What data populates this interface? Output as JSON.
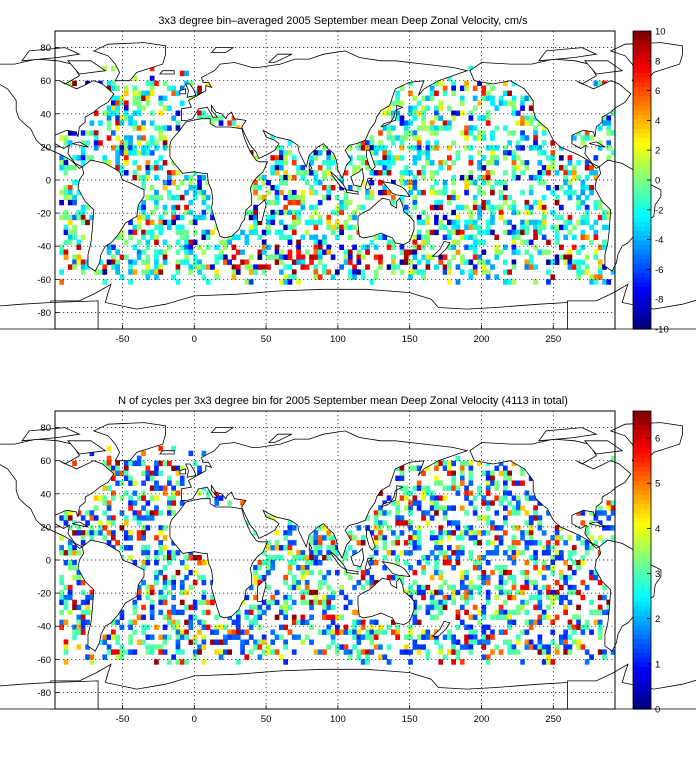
{
  "figure": {
    "panels": [
      {
        "title": "3x3 degree bin–averaged 2005 September mean Deep Zonal Velocity, cm/s",
        "x_ticks": [
          "-50",
          "0",
          "50",
          "100",
          "150",
          "200",
          "250"
        ],
        "y_ticks": [
          "80",
          "60",
          "40",
          "20",
          "0",
          "-20",
          "-40",
          "-60",
          "-80"
        ],
        "colorbar_ticks": [
          "10",
          "8",
          "6",
          "4",
          "2",
          "0",
          "-2",
          "-4",
          "-6",
          "-8",
          "-10"
        ]
      },
      {
        "title": "N of cycles per 3x3 degree bin for 2005 September mean Deep Zonal Velocity (4113 in total)",
        "x_ticks": [
          "-50",
          "0",
          "50",
          "100",
          "150",
          "200",
          "250"
        ],
        "y_ticks": [
          "80",
          "60",
          "40",
          "20",
          "0",
          "-20",
          "-40",
          "-60",
          "-80"
        ],
        "colorbar_ticks": [
          "6",
          "5",
          "4",
          "3",
          "2",
          "1",
          "0"
        ]
      }
    ]
  },
  "chart_data": [
    {
      "type": "heatmap",
      "title": "3x3 degree bin–averaged 2005 September mean Deep Zonal Velocity, cm/s",
      "xlim": [
        -97,
        293
      ],
      "ylim": [
        -90,
        90
      ],
      "bin_size_deg": 3,
      "colormap": "jet",
      "clim": [
        -10,
        10
      ],
      "grid": true
    },
    {
      "type": "heatmap",
      "title": "N of cycles per 3x3 degree bin for 2005 September mean Deep Zonal Velocity (4113 in total)",
      "xlim": [
        -97,
        293
      ],
      "ylim": [
        -90,
        90
      ],
      "bin_size_deg": 3,
      "colormap": "jet",
      "clim": [
        0,
        6.6
      ],
      "grid": true
    }
  ]
}
